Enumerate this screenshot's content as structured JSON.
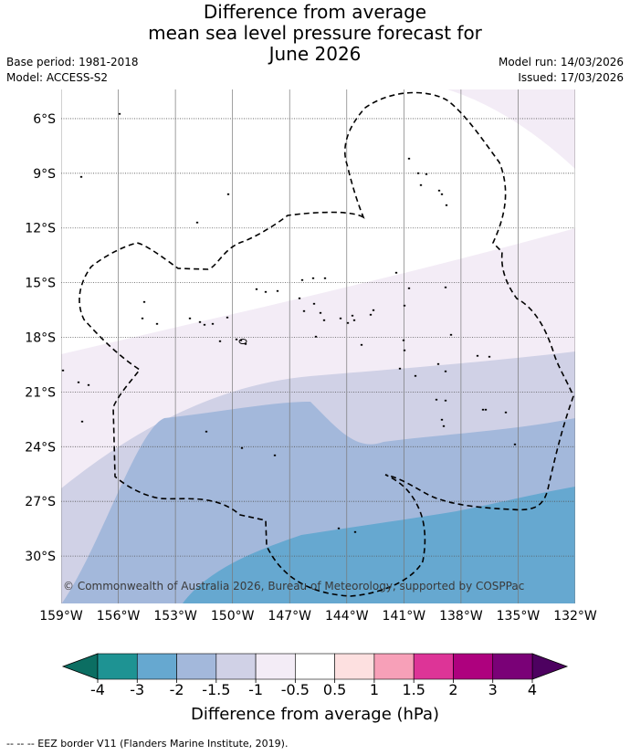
{
  "title": {
    "line1": "Difference from average",
    "line2": "mean sea level pressure forecast for",
    "line3": "June 2026"
  },
  "meta": {
    "base_period": "Base period: 1981-2018",
    "model": "Model: ACCESS-S2",
    "model_run": "Model run: 14/03/2026",
    "issued": "Issued: 17/03/2026"
  },
  "map": {
    "lat_labels": [
      "6°S",
      "9°S",
      "12°S",
      "15°S",
      "18°S",
      "21°S",
      "24°S",
      "27°S",
      "30°S"
    ],
    "lon_labels": [
      "159°W",
      "156°W",
      "153°W",
      "150°W",
      "147°W",
      "144°W",
      "141°W",
      "138°W",
      "135°W",
      "132°W"
    ],
    "lat_range": [
      -32.6,
      -4.4
    ],
    "lon_range": [
      -159,
      -132
    ],
    "copyright": "© Commonwealth of Australia 2026, Bureau of Meteorology, supported by COSPPac"
  },
  "colorbar": {
    "ticks": [
      "-4",
      "-3",
      "-2",
      "-1.5",
      "-1",
      "-0.5",
      "0.5",
      "1",
      "1.5",
      "2",
      "3",
      "4"
    ],
    "colors": [
      "#1e9393",
      "#66a8d0",
      "#a3b8db",
      "#d0d1e6",
      "#f3ecf6",
      "#ffffff",
      "#fde0e0",
      "#f7a0b8",
      "#dd3497",
      "#ae017e",
      "#7a0177"
    ],
    "low_extend": "#0b6e62",
    "high_extend": "#4d0160",
    "label": "Difference from average (hPa)"
  },
  "footer": "-- -- -- EEZ border V11 (Flanders Marine Institute, 2019)."
}
